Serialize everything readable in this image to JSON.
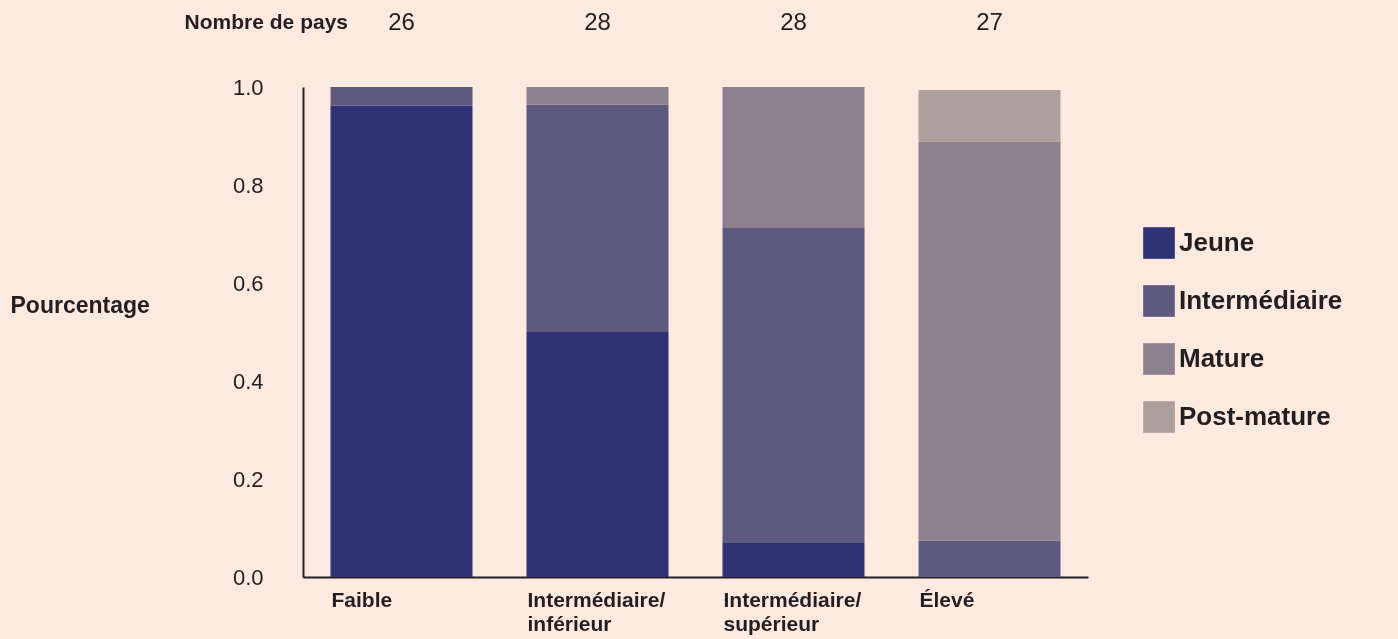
{
  "chart_data": {
    "type": "bar",
    "stacked": true,
    "ylabel": "Pourcentage",
    "categories": [
      "Faible",
      "Intermédiaire/\ninférieur",
      "Intermédiaire/\nsupérieur",
      "Élevé"
    ],
    "series": [
      {
        "name": "Jeune",
        "color": "#2f3273",
        "values": [
          0.962,
          0.5,
          0.071,
          0
        ]
      },
      {
        "name": "Intermédiaire",
        "color": "#5e597e",
        "values": [
          0.038,
          0.464,
          0.643,
          0.074
        ]
      },
      {
        "name": "Mature",
        "color": "#8c818e",
        "values": [
          0,
          0.036,
          0.286,
          0.815
        ]
      },
      {
        "name": "Post-mature",
        "color": "#ad9f9b",
        "values": [
          0,
          0,
          0,
          0.105
        ]
      }
    ],
    "ylim": [
      0,
      1
    ],
    "yticks": [
      {
        "value": 0,
        "label": "0.0"
      },
      {
        "value": 0.2,
        "label": "0.2"
      },
      {
        "value": 0.4,
        "label": "0.4"
      },
      {
        "value": 0.6,
        "label": "0.6"
      },
      {
        "value": 0.8,
        "label": "0.8"
      },
      {
        "value": 1,
        "label": "1.0"
      }
    ],
    "grid": false,
    "legend": "right",
    "annotations": [
      "Nombre de pays",
      "26",
      "28",
      "28",
      "27"
    ]
  }
}
